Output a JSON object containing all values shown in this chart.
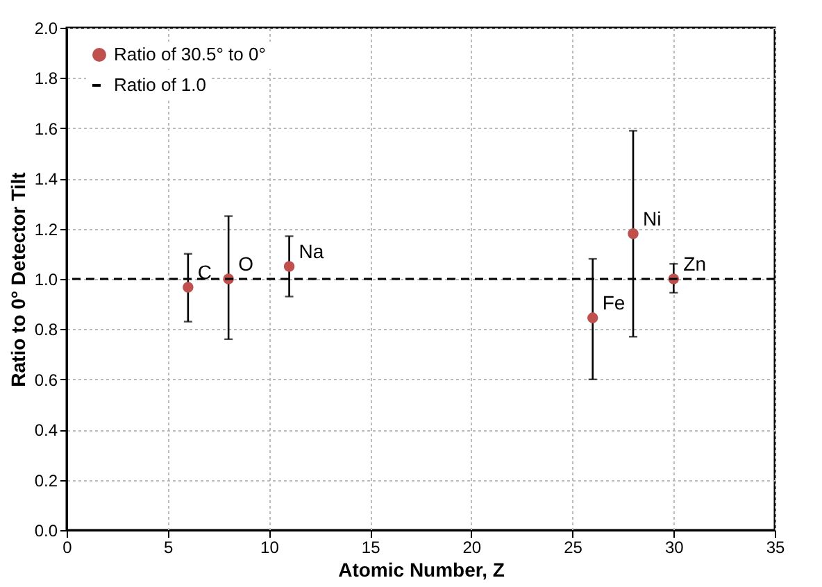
{
  "chart_data": {
    "type": "scatter",
    "xlabel": "Atomic Number, Z",
    "ylabel": "Ratio to 0° Detector Tilt",
    "x": [
      6,
      8,
      11,
      26,
      28,
      30
    ],
    "series": [
      {
        "name": "Ratio of 30.5° to 0°",
        "color": "#c0504d",
        "values": [
          0.967,
          1.0,
          1.05,
          0.845,
          1.18,
          1.0
        ],
        "errors": [
          [
            0.83,
            1.1
          ],
          [
            0.76,
            1.25
          ],
          [
            0.93,
            1.17
          ],
          [
            0.6,
            1.08
          ],
          [
            0.77,
            1.59
          ],
          [
            0.945,
            1.06
          ]
        ]
      }
    ],
    "annotations": [
      {
        "text": "C",
        "x": 6,
        "y": 0.967
      },
      {
        "text": "O",
        "x": 8,
        "y": 1.0
      },
      {
        "text": "Na",
        "x": 11,
        "y": 1.05
      },
      {
        "text": "Fe",
        "x": 26,
        "y": 0.845
      },
      {
        "text": "Ni",
        "x": 28,
        "y": 1.18
      },
      {
        "text": "Zn",
        "x": 30,
        "y": 1.0
      }
    ],
    "ref_lines": [
      {
        "axis": "y",
        "value": 1.0,
        "label": "Ratio of 1.0",
        "color": "#000000",
        "line_style": "dashed"
      }
    ],
    "xlim": [
      0,
      35
    ],
    "xticks": [
      0,
      5,
      10,
      15,
      20,
      25,
      30,
      35
    ],
    "ylim": [
      0,
      2.0
    ],
    "yticks": [
      {
        "value": 0,
        "label": "0.0"
      },
      {
        "value": 0.2,
        "label": "0.2"
      },
      {
        "value": 0.4,
        "label": "0.4"
      },
      {
        "value": 0.6,
        "label": "0.6"
      },
      {
        "value": 0.8,
        "label": "0.8"
      },
      {
        "value": 1.0,
        "label": "1.0"
      },
      {
        "value": 1.2,
        "label": "1.2"
      },
      {
        "value": 1.4,
        "label": "1.4"
      },
      {
        "value": 1.6,
        "label": "1.6"
      },
      {
        "value": 1.8,
        "label": "1.8"
      },
      {
        "value": 2.0,
        "label": "2.0"
      }
    ],
    "grid": true,
    "legend": "top left",
    "marker": "circle"
  }
}
